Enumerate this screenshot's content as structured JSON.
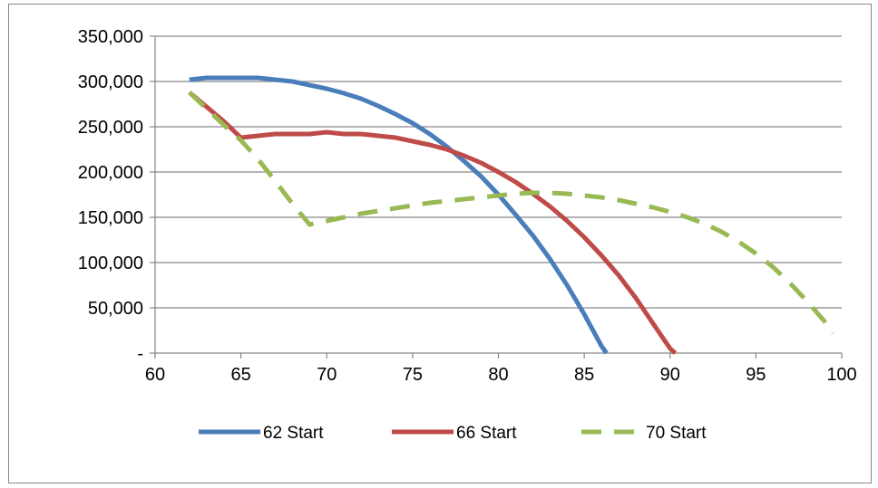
{
  "chart_data": {
    "type": "line",
    "title": "",
    "xlabel": "",
    "ylabel": "",
    "xlim": [
      60,
      100
    ],
    "ylim": [
      0,
      350000
    ],
    "x_ticks": [
      60,
      65,
      70,
      75,
      80,
      85,
      90,
      95,
      100
    ],
    "y_ticks": [
      0,
      50000,
      100000,
      150000,
      200000,
      250000,
      300000,
      350000
    ],
    "y_tick_labels": [
      "-",
      "50,000",
      "100,000",
      "150,000",
      "200,000",
      "250,000",
      "300,000",
      "350,000"
    ],
    "grid": "horizontal",
    "legend_position": "bottom",
    "series": [
      {
        "name": "62 Start",
        "color": "#4a7ebb",
        "dash": "solid",
        "points": [
          [
            62,
            302000
          ],
          [
            63,
            304000
          ],
          [
            64,
            304000
          ],
          [
            65,
            304000
          ],
          [
            66,
            304000
          ],
          [
            67,
            302000
          ],
          [
            68,
            300000
          ],
          [
            69,
            296000
          ],
          [
            70,
            292000
          ],
          [
            71,
            287000
          ],
          [
            72,
            281000
          ],
          [
            73,
            273000
          ],
          [
            74,
            264000
          ],
          [
            75,
            254000
          ],
          [
            76,
            242000
          ],
          [
            77,
            228000
          ],
          [
            78,
            212000
          ],
          [
            79,
            195000
          ],
          [
            80,
            175000
          ],
          [
            81,
            153000
          ],
          [
            82,
            130000
          ],
          [
            83,
            104000
          ],
          [
            84,
            75000
          ],
          [
            85,
            43000
          ],
          [
            86,
            8000
          ],
          [
            86.3,
            0
          ]
        ]
      },
      {
        "name": "66 Start",
        "color": "#be4b48",
        "dash": "solid",
        "points": [
          [
            62,
            288000
          ],
          [
            63,
            272000
          ],
          [
            64,
            256000
          ],
          [
            65,
            238000
          ],
          [
            66,
            240000
          ],
          [
            67,
            242000
          ],
          [
            68,
            242000
          ],
          [
            69,
            242000
          ],
          [
            70,
            244000
          ],
          [
            71,
            242000
          ],
          [
            72,
            242000
          ],
          [
            73,
            240000
          ],
          [
            74,
            238000
          ],
          [
            75,
            234000
          ],
          [
            76,
            230000
          ],
          [
            77,
            225000
          ],
          [
            78,
            218000
          ],
          [
            79,
            210000
          ],
          [
            80,
            200000
          ],
          [
            81,
            189000
          ],
          [
            82,
            176000
          ],
          [
            83,
            162000
          ],
          [
            84,
            146000
          ],
          [
            85,
            128000
          ],
          [
            86,
            108000
          ],
          [
            87,
            86000
          ],
          [
            88,
            61000
          ],
          [
            89,
            33000
          ],
          [
            90,
            5000
          ],
          [
            90.3,
            0
          ]
        ]
      },
      {
        "name": "70 Start",
        "color": "#98b954",
        "dash": "dashed",
        "points": [
          [
            62,
            288000
          ],
          [
            63,
            270000
          ],
          [
            64,
            252000
          ],
          [
            65,
            235000
          ],
          [
            66,
            214000
          ],
          [
            67,
            190000
          ],
          [
            68,
            165000
          ],
          [
            69,
            142000
          ],
          [
            70,
            146000
          ],
          [
            71,
            150000
          ],
          [
            72,
            154000
          ],
          [
            73,
            157000
          ],
          [
            74,
            160000
          ],
          [
            75,
            163000
          ],
          [
            76,
            166000
          ],
          [
            77,
            168000
          ],
          [
            78,
            170000
          ],
          [
            79,
            172000
          ],
          [
            80,
            174000
          ],
          [
            81,
            176000
          ],
          [
            82,
            177000
          ],
          [
            83,
            177000
          ],
          [
            84,
            176000
          ],
          [
            85,
            174000
          ],
          [
            86,
            172000
          ],
          [
            87,
            169000
          ],
          [
            88,
            165000
          ],
          [
            89,
            161000
          ],
          [
            90,
            156000
          ],
          [
            91,
            150000
          ],
          [
            92,
            143000
          ],
          [
            93,
            134000
          ],
          [
            94,
            123000
          ],
          [
            95,
            110000
          ],
          [
            96,
            95000
          ],
          [
            97,
            77000
          ],
          [
            98,
            57000
          ],
          [
            99,
            35000
          ],
          [
            99.5,
            22000
          ]
        ]
      }
    ]
  }
}
